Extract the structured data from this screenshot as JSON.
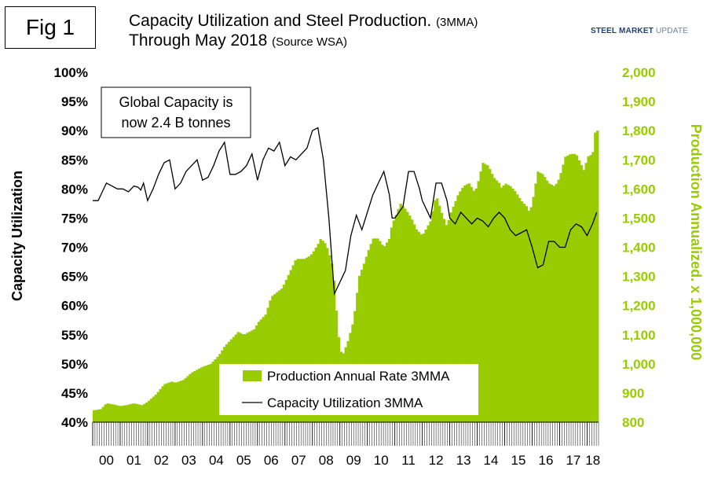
{
  "fig_label": "Fig 1",
  "title_line1": "Capacity Utilization and Steel Production.",
  "title_line1_small": "(3MMA)",
  "title_line2": "Through May 2018",
  "title_line2_small": "(Source WSA)",
  "logo": {
    "word1": "STEEL",
    "word2": "MARKET",
    "word3": "UPDATE"
  },
  "annotation": [
    "Global Capacity is",
    "now 2.4 B tonnes"
  ],
  "colors": {
    "production": "#99cc00",
    "utilization": "#000000",
    "right_axis": "#99cc00"
  },
  "chart_data": {
    "type": "bar+line",
    "x_categories": [
      "00",
      "01",
      "02",
      "03",
      "04",
      "05",
      "06",
      "07",
      "08",
      "09",
      "10",
      "11",
      "12",
      "13",
      "14",
      "15",
      "16",
      "17",
      "18"
    ],
    "y_left": {
      "label": "Capacity Utilization",
      "min": 40,
      "max": 100,
      "step": 5,
      "ticks": [
        "40%",
        "45%",
        "50%",
        "55%",
        "60%",
        "65%",
        "70%",
        "75%",
        "80%",
        "85%",
        "90%",
        "95%",
        "100%"
      ]
    },
    "y_right": {
      "label": "Production Annualized. x 1,000,000",
      "min": 800,
      "max": 2000,
      "step": 100,
      "ticks": [
        "800",
        "900",
        "1,000",
        "1,100",
        "1,200",
        "1,300",
        "1,400",
        "1,500",
        "1,600",
        "1,700",
        "1,800",
        "1,900",
        "2,000"
      ]
    },
    "legend": [
      "Production Annual Rate 3MMA",
      "Capacity Utilization 3MMA"
    ],
    "series": [
      {
        "name": "Production Annual Rate 3MMA",
        "type": "bar",
        "axis": "right",
        "unit": "million tonnes",
        "points": [
          [
            2000.0,
            840
          ],
          [
            2000.3,
            845
          ],
          [
            2000.5,
            865
          ],
          [
            2000.8,
            860
          ],
          [
            2001.0,
            855
          ],
          [
            2001.3,
            860
          ],
          [
            2001.5,
            865
          ],
          [
            2001.8,
            858
          ],
          [
            2002.0,
            870
          ],
          [
            2002.3,
            895
          ],
          [
            2002.6,
            930
          ],
          [
            2002.9,
            940
          ],
          [
            2003.0,
            935
          ],
          [
            2003.3,
            945
          ],
          [
            2003.6,
            970
          ],
          [
            2003.9,
            985
          ],
          [
            2004.0,
            990
          ],
          [
            2004.3,
            1000
          ],
          [
            2004.6,
            1030
          ],
          [
            2004.8,
            1060
          ],
          [
            2005.0,
            1080
          ],
          [
            2005.3,
            1110
          ],
          [
            2005.5,
            1100
          ],
          [
            2005.9,
            1120
          ],
          [
            2006.0,
            1140
          ],
          [
            2006.3,
            1170
          ],
          [
            2006.5,
            1230
          ],
          [
            2006.9,
            1260
          ],
          [
            2007.0,
            1280
          ],
          [
            2007.4,
            1360
          ],
          [
            2007.7,
            1360
          ],
          [
            2007.9,
            1370
          ],
          [
            2008.0,
            1380
          ],
          [
            2008.2,
            1410
          ],
          [
            2008.3,
            1430
          ],
          [
            2008.5,
            1410
          ],
          [
            2008.7,
            1350
          ],
          [
            2008.8,
            1280
          ],
          [
            2008.9,
            1150
          ],
          [
            2009.0,
            1050
          ],
          [
            2009.1,
            1030
          ],
          [
            2009.3,
            1080
          ],
          [
            2009.5,
            1150
          ],
          [
            2009.7,
            1300
          ],
          [
            2009.9,
            1350
          ],
          [
            2010.0,
            1380
          ],
          [
            2010.2,
            1430
          ],
          [
            2010.4,
            1430
          ],
          [
            2010.6,
            1400
          ],
          [
            2010.8,
            1430
          ],
          [
            2010.9,
            1480
          ],
          [
            2011.0,
            1500
          ],
          [
            2011.2,
            1550
          ],
          [
            2011.4,
            1530
          ],
          [
            2011.6,
            1500
          ],
          [
            2011.8,
            1460
          ],
          [
            2011.9,
            1450
          ],
          [
            2012.0,
            1440
          ],
          [
            2012.3,
            1490
          ],
          [
            2012.5,
            1580
          ],
          [
            2012.7,
            1520
          ],
          [
            2012.9,
            1470
          ],
          [
            2013.0,
            1510
          ],
          [
            2013.3,
            1580
          ],
          [
            2013.5,
            1610
          ],
          [
            2013.7,
            1620
          ],
          [
            2013.9,
            1590
          ],
          [
            2014.0,
            1610
          ],
          [
            2014.2,
            1690
          ],
          [
            2014.4,
            1680
          ],
          [
            2014.6,
            1640
          ],
          [
            2014.8,
            1620
          ],
          [
            2014.9,
            1600
          ],
          [
            2015.0,
            1620
          ],
          [
            2015.2,
            1610
          ],
          [
            2015.4,
            1590
          ],
          [
            2015.6,
            1560
          ],
          [
            2015.8,
            1540
          ],
          [
            2015.9,
            1520
          ],
          [
            2016.0,
            1550
          ],
          [
            2016.2,
            1660
          ],
          [
            2016.4,
            1650
          ],
          [
            2016.6,
            1620
          ],
          [
            2016.8,
            1610
          ],
          [
            2016.9,
            1620
          ],
          [
            2017.0,
            1640
          ],
          [
            2017.2,
            1710
          ],
          [
            2017.4,
            1720
          ],
          [
            2017.6,
            1720
          ],
          [
            2017.8,
            1680
          ],
          [
            2017.9,
            1660
          ],
          [
            2018.0,
            1710
          ],
          [
            2018.2,
            1720
          ],
          [
            2018.3,
            1800
          ]
        ]
      },
      {
        "name": "Capacity Utilization 3MMA",
        "type": "line",
        "axis": "left",
        "unit": "%",
        "points": [
          [
            2000.0,
            78
          ],
          [
            2000.2,
            78
          ],
          [
            2000.35,
            79.5
          ],
          [
            2000.5,
            81
          ],
          [
            2000.7,
            80.5
          ],
          [
            2000.9,
            80
          ],
          [
            2001.1,
            80
          ],
          [
            2001.3,
            79.5
          ],
          [
            2001.5,
            80.5
          ],
          [
            2001.65,
            80.3
          ],
          [
            2001.75,
            79.8
          ],
          [
            2001.85,
            81
          ],
          [
            2002.0,
            78
          ],
          [
            2002.2,
            80
          ],
          [
            2002.4,
            82.5
          ],
          [
            2002.6,
            84.5
          ],
          [
            2002.8,
            85
          ],
          [
            2003.0,
            80
          ],
          [
            2003.2,
            81
          ],
          [
            2003.4,
            83
          ],
          [
            2003.6,
            84
          ],
          [
            2003.8,
            85
          ],
          [
            2004.0,
            81.5
          ],
          [
            2004.2,
            82
          ],
          [
            2004.4,
            84
          ],
          [
            2004.6,
            86.5
          ],
          [
            2004.8,
            88
          ],
          [
            2005.0,
            82.5
          ],
          [
            2005.2,
            82.5
          ],
          [
            2005.4,
            83
          ],
          [
            2005.6,
            84
          ],
          [
            2005.8,
            86
          ],
          [
            2006.0,
            81.5
          ],
          [
            2006.2,
            85
          ],
          [
            2006.4,
            87
          ],
          [
            2006.6,
            86.5
          ],
          [
            2006.8,
            88
          ],
          [
            2007.0,
            84
          ],
          [
            2007.2,
            85.5
          ],
          [
            2007.4,
            85
          ],
          [
            2007.6,
            86
          ],
          [
            2007.8,
            87
          ],
          [
            2008.0,
            90
          ],
          [
            2008.2,
            90.5
          ],
          [
            2008.4,
            85
          ],
          [
            2008.6,
            75
          ],
          [
            2008.8,
            62
          ],
          [
            2009.0,
            64
          ],
          [
            2009.2,
            66
          ],
          [
            2009.4,
            72
          ],
          [
            2009.6,
            75.5
          ],
          [
            2009.8,
            73
          ],
          [
            2010.0,
            76
          ],
          [
            2010.2,
            79
          ],
          [
            2010.4,
            81
          ],
          [
            2010.6,
            83
          ],
          [
            2010.8,
            79
          ],
          [
            2010.9,
            75
          ],
          [
            2011.0,
            75
          ],
          [
            2011.3,
            77
          ],
          [
            2011.5,
            83
          ],
          [
            2011.7,
            83
          ],
          [
            2011.9,
            80
          ],
          [
            2012.0,
            78
          ],
          [
            2012.3,
            75
          ],
          [
            2012.5,
            81
          ],
          [
            2012.7,
            81
          ],
          [
            2012.9,
            78
          ],
          [
            2013.0,
            75
          ],
          [
            2013.2,
            74
          ],
          [
            2013.4,
            76
          ],
          [
            2013.6,
            75
          ],
          [
            2013.8,
            74
          ],
          [
            2014.0,
            75
          ],
          [
            2014.2,
            74.5
          ],
          [
            2014.4,
            73.5
          ],
          [
            2014.6,
            75
          ],
          [
            2014.8,
            76
          ],
          [
            2015.0,
            75
          ],
          [
            2015.2,
            73
          ],
          [
            2015.4,
            72
          ],
          [
            2015.6,
            72.5
          ],
          [
            2015.8,
            73
          ],
          [
            2016.0,
            70
          ],
          [
            2016.2,
            66.5
          ],
          [
            2016.4,
            67
          ],
          [
            2016.6,
            71
          ],
          [
            2016.8,
            71
          ],
          [
            2017.0,
            70
          ],
          [
            2017.2,
            70
          ],
          [
            2017.4,
            73
          ],
          [
            2017.6,
            74
          ],
          [
            2017.8,
            73.5
          ],
          [
            2018.0,
            72
          ],
          [
            2018.2,
            74
          ],
          [
            2018.35,
            76
          ]
        ]
      }
    ]
  }
}
